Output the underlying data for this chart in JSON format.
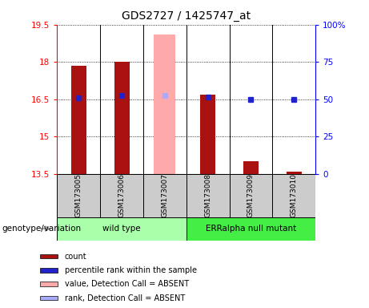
{
  "title": "GDS2727 / 1425747_at",
  "samples": [
    "GSM173005",
    "GSM173006",
    "GSM173007",
    "GSM173008",
    "GSM173009",
    "GSM173010"
  ],
  "ylim_left": [
    13.5,
    19.5
  ],
  "ylim_right": [
    0,
    100
  ],
  "yticks_left": [
    13.5,
    15,
    16.5,
    18,
    19.5
  ],
  "yticks_right": [
    0,
    25,
    50,
    75,
    100
  ],
  "ytick_labels_left": [
    "13.5",
    "15",
    "16.5",
    "18",
    "19.5"
  ],
  "ytick_labels_right": [
    "0",
    "25",
    "50",
    "75",
    "100%"
  ],
  "bar_base": 13.5,
  "count_values": [
    17.85,
    18.0,
    null,
    16.7,
    14.0,
    13.6
  ],
  "rank_values": [
    16.55,
    16.65,
    null,
    16.6,
    16.5,
    16.5
  ],
  "absent_value": 19.1,
  "absent_rank": 16.65,
  "absent_idx": 2,
  "bar_color": "#aa1111",
  "rank_color": "#2222cc",
  "absent_bar_color": "#ffaaaa",
  "absent_rank_color": "#aaaaff",
  "bar_width": 0.35,
  "absent_bar_width": 0.5,
  "groups": [
    {
      "label": "wild type",
      "indices": [
        0,
        1,
        2
      ],
      "color": "#aaffaa"
    },
    {
      "label": "ERRalpha null mutant",
      "indices": [
        3,
        4,
        5
      ],
      "color": "#44ee44"
    }
  ],
  "sample_row_color": "#cccccc",
  "legend_items": [
    {
      "label": "count",
      "color": "#aa1111"
    },
    {
      "label": "percentile rank within the sample",
      "color": "#2222cc"
    },
    {
      "label": "value, Detection Call = ABSENT",
      "color": "#ffaaaa"
    },
    {
      "label": "rank, Detection Call = ABSENT",
      "color": "#aaaaff"
    }
  ],
  "genotype_label": "genotype/variation",
  "arrow_color": "#999999"
}
